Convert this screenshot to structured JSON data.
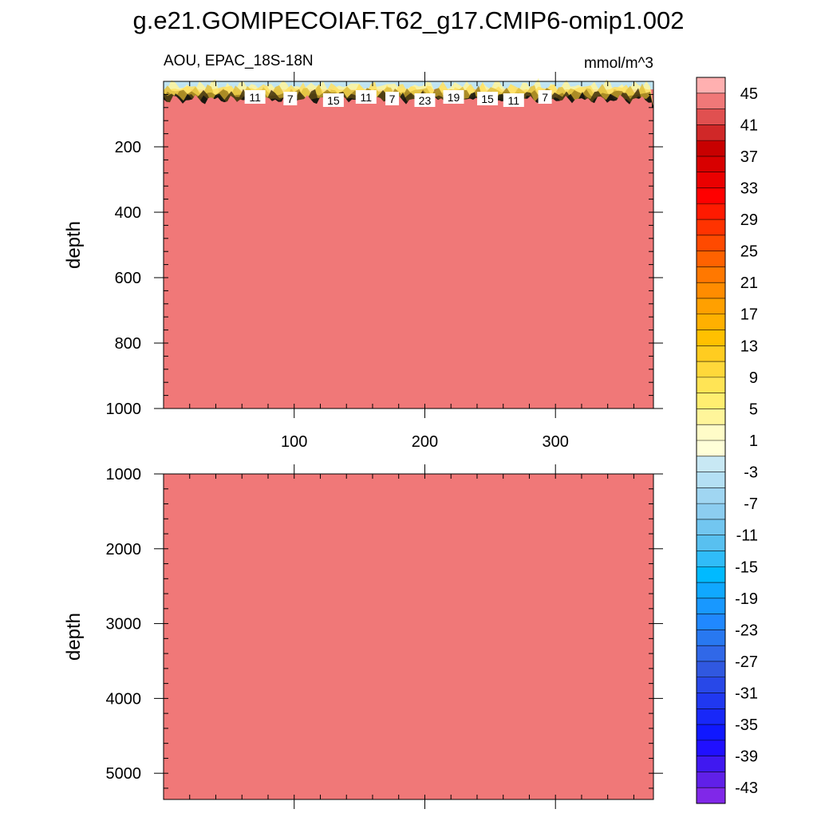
{
  "title": "g.e21.GOMIPECOIAF.T62_g17.CMIP6-omip1.002",
  "chart_data": {
    "type": "heatmap",
    "left_label": "AOU, EPAC_18S-18N",
    "units": "mmol/m^3",
    "ylabel": "depth",
    "x_ticks": [
      "100",
      "200",
      "300"
    ],
    "xlim": [
      0,
      375
    ],
    "panels": [
      {
        "ylim": [
          0,
          1000
        ],
        "y_major_ticks": [
          200,
          400,
          600,
          800,
          1000
        ],
        "y_tick_labels": [
          "200",
          "400",
          "600",
          "800",
          "1000"
        ],
        "fill_value": 47,
        "surface_band_depth": 80,
        "contour_labels": [
          {
            "text": "11",
            "x": 70
          },
          {
            "text": "7",
            "x": 97
          },
          {
            "text": "15",
            "x": 130
          },
          {
            "text": "11",
            "x": 155
          },
          {
            "text": "7",
            "x": 175
          },
          {
            "text": "23",
            "x": 200
          },
          {
            "text": "19",
            "x": 222
          },
          {
            "text": "15",
            "x": 248
          },
          {
            "text": "11",
            "x": 268
          },
          {
            "text": "7",
            "x": 292
          }
        ]
      },
      {
        "ylim": [
          1000,
          5350
        ],
        "y_major_ticks": [
          1000,
          2000,
          3000,
          4000,
          5000
        ],
        "y_tick_labels": [
          "1000",
          "2000",
          "3000",
          "4000",
          "5000"
        ],
        "fill_value": 47
      }
    ],
    "colorbar": {
      "labels": [
        "45",
        "41",
        "37",
        "33",
        "29",
        "25",
        "21",
        "17",
        "13",
        "9",
        "5",
        "1",
        "-3",
        "-7",
        "-11",
        "-15",
        "-19",
        "-23",
        "-27",
        "-31",
        "-35",
        "-39",
        "-43"
      ],
      "colors": [
        "#ffb0b0",
        "#f07878",
        "#e05050",
        "#d02828",
        "#c80000",
        "#d80000",
        "#ea0000",
        "#ff0000",
        "#ff1a00",
        "#ff3300",
        "#ff4a00",
        "#ff6200",
        "#ff7800",
        "#ff8c00",
        "#ffa000",
        "#ffb000",
        "#ffc000",
        "#ffcc20",
        "#ffd83a",
        "#ffe455",
        "#ffee70",
        "#fff59a",
        "#fffcc8",
        "#ffffd8",
        "#c8e8f4",
        "#b4e0f4",
        "#a0d6f2",
        "#8ccdf0",
        "#72c6f0",
        "#58c0f0",
        "#30bcf8",
        "#00baff",
        "#10a8ff",
        "#1898ff",
        "#2088ff",
        "#2878f0",
        "#3068e8",
        "#3058e0",
        "#2848e8",
        "#2038f0",
        "#1828f8",
        "#1018ff",
        "#2010ff",
        "#4018f0",
        "#6020e8",
        "#8028e8"
      ]
    }
  }
}
